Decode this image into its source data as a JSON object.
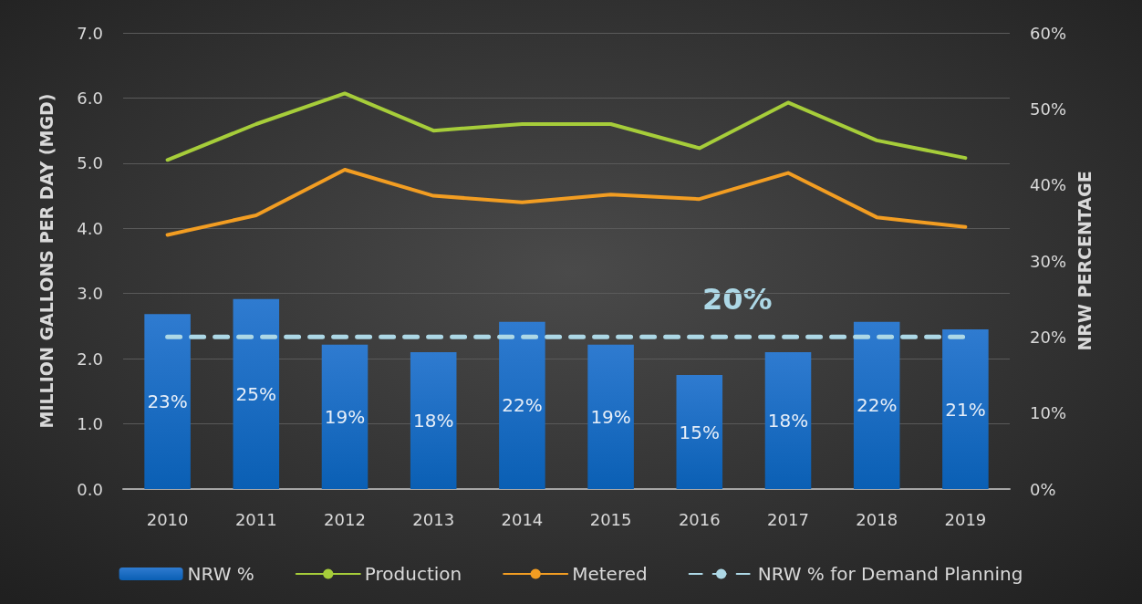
{
  "chart_data": {
    "type": "bar",
    "categories": [
      "2010",
      "2011",
      "2012",
      "2013",
      "2014",
      "2015",
      "2016",
      "2017",
      "2018",
      "2019"
    ],
    "series": [
      {
        "name": "NRW %",
        "axis": "y2",
        "color": "#2f7bd0",
        "values": [
          23,
          25,
          19,
          18,
          22,
          19,
          15,
          18,
          22,
          21
        ],
        "value_labels": [
          "23%",
          "25%",
          "19%",
          "18%",
          "22%",
          "19%",
          "15%",
          "18%",
          "22%",
          "21%"
        ]
      },
      {
        "name": "Production",
        "type": "line",
        "color": "#a6cd3a",
        "values": [
          5.05,
          5.6,
          6.07,
          5.5,
          5.6,
          5.6,
          5.23,
          5.93,
          5.35,
          5.08
        ]
      },
      {
        "name": "Metered",
        "type": "line",
        "color": "#f29d22",
        "values": [
          3.9,
          4.2,
          4.9,
          4.5,
          4.4,
          4.52,
          4.45,
          4.85,
          4.17,
          4.02
        ]
      },
      {
        "name": "NRW % for Demand Planning",
        "type": "line",
        "axis": "y2",
        "color": "#add8e6",
        "line_style": "dashed",
        "values": [
          20,
          20,
          20,
          20,
          20,
          20,
          20,
          20,
          20,
          20
        ]
      }
    ],
    "ylabel": "MILLION GALLONS PER DAY (MGD)",
    "y2label": "NRW PERCENTAGE",
    "ylim": [
      0,
      7
    ],
    "yticks": [
      {
        "value": 0,
        "label": "0.0"
      },
      {
        "value": 1,
        "label": "1.0"
      },
      {
        "value": 2,
        "label": "2.0"
      },
      {
        "value": 3,
        "label": "3.0"
      },
      {
        "value": 4,
        "label": "4.0"
      },
      {
        "value": 5,
        "label": "5.0"
      },
      {
        "value": 6,
        "label": "6.0"
      },
      {
        "value": 7,
        "label": "7.0"
      }
    ],
    "y2lim": [
      0,
      60
    ],
    "y2ticks": [
      {
        "value": 0,
        "label": "0%"
      },
      {
        "value": 10,
        "label": "10%"
      },
      {
        "value": 20,
        "label": "20%"
      },
      {
        "value": 30,
        "label": "30%"
      },
      {
        "value": 40,
        "label": "40%"
      },
      {
        "value": 50,
        "label": "50%"
      },
      {
        "value": 60,
        "label": "60%"
      }
    ],
    "annotations": [
      "20%"
    ],
    "marker": "none",
    "grid": "y",
    "legend": "bottom"
  }
}
